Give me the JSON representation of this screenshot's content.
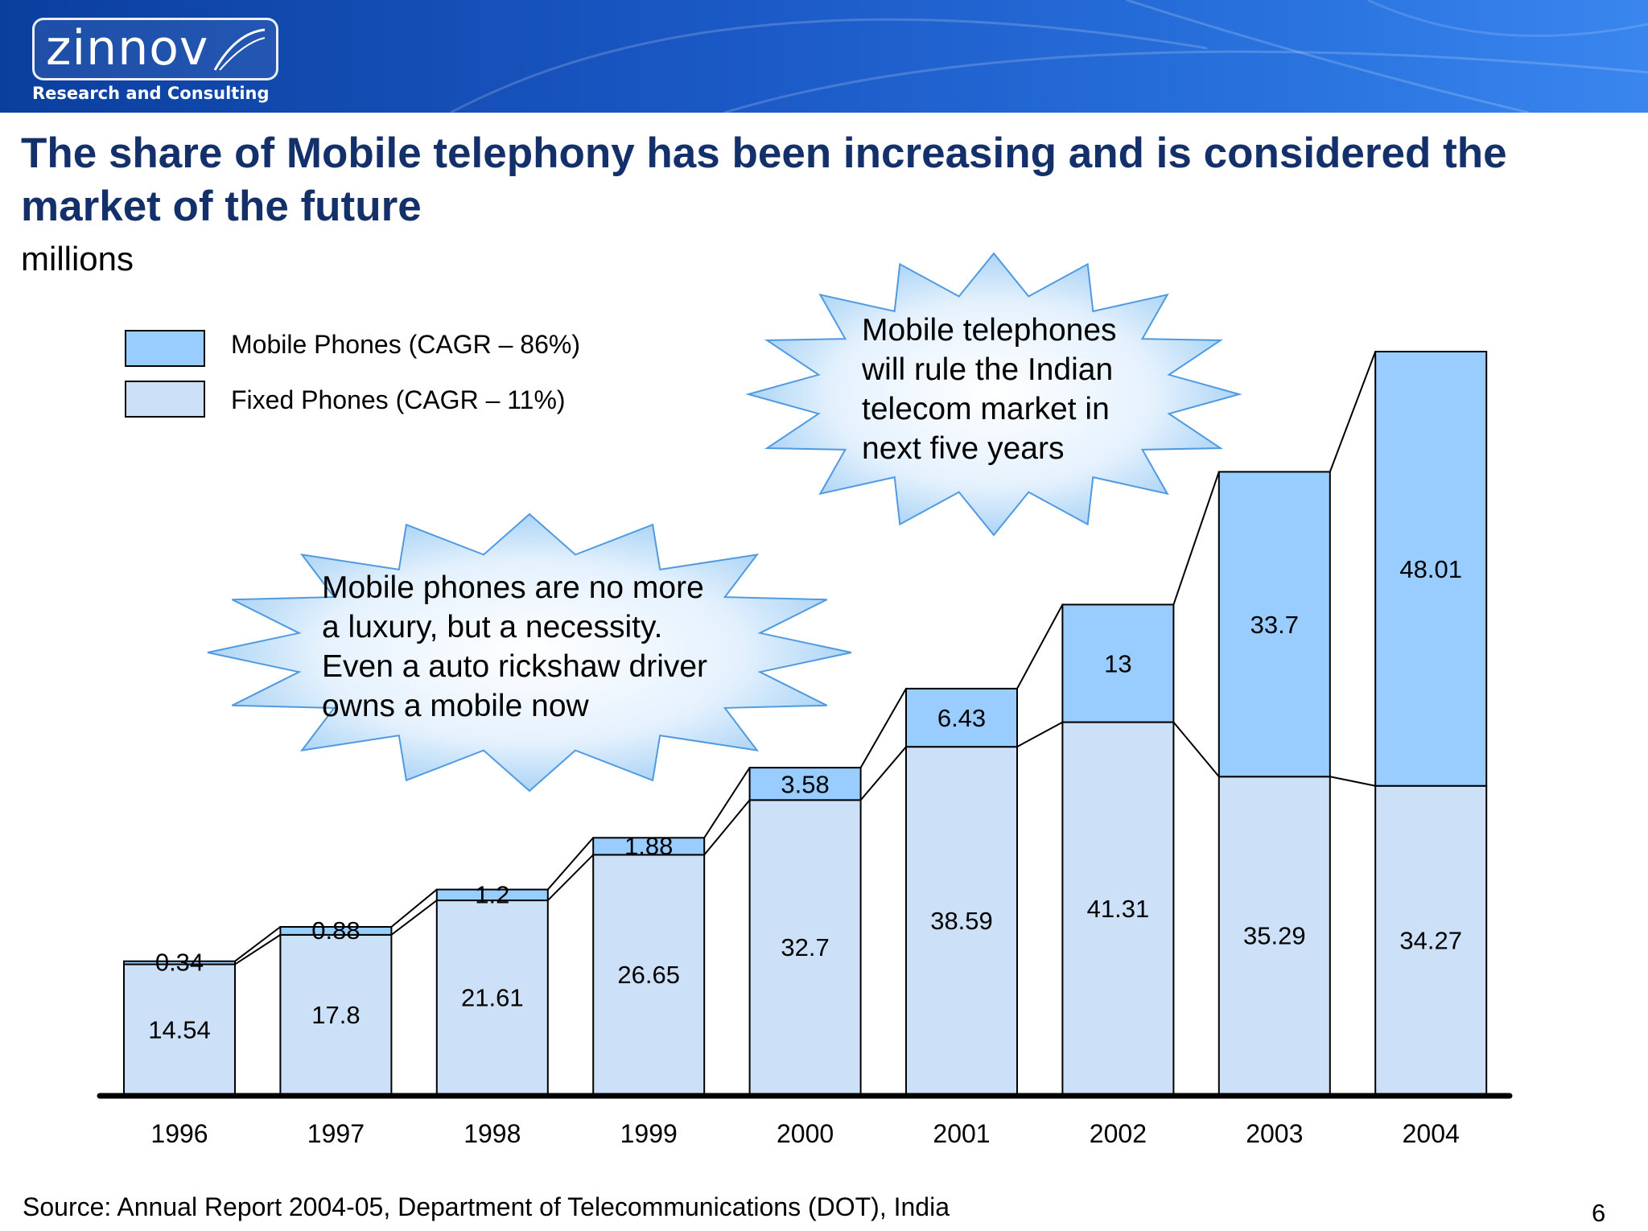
{
  "header": {
    "logo_text": "zinnov",
    "tagline": "Research and Consulting"
  },
  "title": "The share of Mobile telephony has been increasing and is considered the market of the future",
  "unit_label": "millions",
  "legend": [
    {
      "label": "Mobile Phones (CAGR – 86%)",
      "color": "#99ccff"
    },
    {
      "label": "Fixed Phones (CAGR – 11%)",
      "color": "#cce0f8"
    }
  ],
  "callouts": [
    {
      "text": [
        "Mobile telephones",
        "will rule the Indian",
        "telecom market in",
        "next five years"
      ]
    },
    {
      "text": [
        "Mobile phones are no more",
        "a luxury, but a necessity.",
        "Even a auto rickshaw driver",
        "owns a mobile now"
      ]
    }
  ],
  "chart_data": {
    "type": "bar",
    "stacked": true,
    "categories": [
      "1996",
      "1997",
      "1998",
      "1999",
      "2000",
      "2001",
      "2002",
      "2003",
      "2004"
    ],
    "series": [
      {
        "name": "Fixed Phones (CAGR – 11%)",
        "color": "#cce0f8",
        "values": [
          14.54,
          17.8,
          21.61,
          26.65,
          32.7,
          38.59,
          41.31,
          35.29,
          34.27
        ],
        "labels": [
          "14.54",
          "17.8",
          "21.61",
          "26.65",
          "32.7",
          "38.59",
          "41.31",
          "35.29",
          "34.27"
        ]
      },
      {
        "name": "Mobile Phones (CAGR – 86%)",
        "color": "#99ccff",
        "values": [
          0.34,
          0.88,
          1.2,
          1.88,
          3.58,
          6.43,
          13,
          33.7,
          48.01
        ],
        "labels": [
          "0.34",
          "0.88",
          "1.2",
          "1.88",
          "3.58",
          "6.43",
          "13",
          "33.7",
          "48.01"
        ]
      }
    ],
    "ylim": [
      0,
      82.28
    ],
    "grid": false
  },
  "footer": {
    "source": "Source:  Annual Report 2004-05, Department of Telecommunications (DOT), India",
    "page_number": "6"
  }
}
